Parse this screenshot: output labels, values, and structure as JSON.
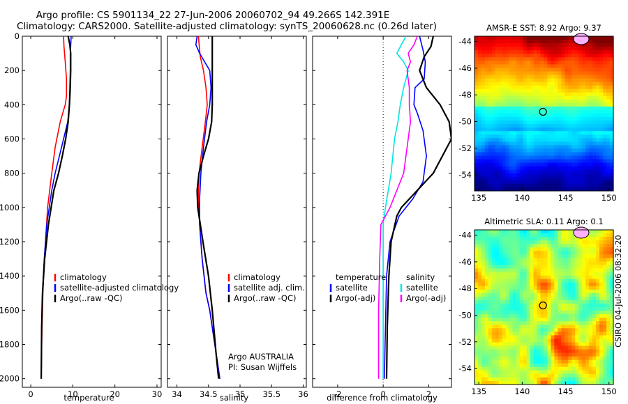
{
  "header": {
    "line1": "Argo profile: CS 5901134_22 27-Jun-2006 20060702_94 49.266S 142.391E",
    "line2": "Climatology: CARS2000. Satellite-adjusted climatology: synTS_20060628.nc (0.26d later)"
  },
  "footer": {
    "credit": "CSIRO 04-Jul-2006 08:32:20",
    "program": "Argo AUSTRALIA",
    "pi": "PI: Susan Wijffels"
  },
  "colors": {
    "climatology": "#ff0000",
    "satellite": "#0000ff",
    "argo": "#000000",
    "salinity_satellite": "#00e5e5",
    "salinity_argo": "#ff00ff"
  },
  "chart_data": [
    {
      "id": "temperature",
      "type": "line",
      "xlabel": "temperature",
      "xlim": [
        -2,
        31
      ],
      "ylim": [
        2050,
        0
      ],
      "xticks": [
        0,
        10,
        20,
        30
      ],
      "yticks": [
        0,
        200,
        400,
        600,
        800,
        1000,
        1200,
        1400,
        1600,
        1800,
        2000
      ],
      "legend": [
        "climatology",
        "satellite-adjusted climatology",
        "Argo(..raw -QC)"
      ],
      "series": [
        {
          "name": "climatology",
          "color": "#ff0000",
          "x": [
            7.8,
            7.9,
            8.2,
            8.5,
            8.5,
            8.2,
            7.0,
            5.8,
            5.0,
            4.5,
            4.0,
            3.5,
            3.0,
            2.8,
            2.6,
            2.5
          ],
          "y": [
            0,
            60,
            150,
            250,
            350,
            400,
            500,
            650,
            800,
            900,
            1000,
            1200,
            1400,
            1600,
            1800,
            2000
          ]
        },
        {
          "name": "satellite-adjusted climatology",
          "color": "#0000ff",
          "x": [
            9.6,
            9.5,
            9.4,
            9.4,
            9.3,
            9.2,
            8.8,
            7.8,
            6.8,
            5.8,
            5.0,
            3.8,
            3.2,
            2.8,
            2.6,
            2.5
          ],
          "y": [
            0,
            60,
            100,
            200,
            300,
            400,
            500,
            600,
            700,
            800,
            900,
            1100,
            1300,
            1500,
            1700,
            2000
          ]
        },
        {
          "name": "Argo(..raw -QC)",
          "color": "#000000",
          "x": [
            8.9,
            9.3,
            9.5,
            9.5,
            9.4,
            9.2,
            8.9,
            8.3,
            7.5,
            6.6,
            5.5,
            4.2,
            3.3,
            2.8,
            2.6,
            2.5
          ],
          "y": [
            0,
            50,
            100,
            200,
            300,
            400,
            500,
            600,
            700,
            800,
            900,
            1100,
            1300,
            1500,
            1700,
            2000
          ]
        }
      ]
    },
    {
      "id": "salinity",
      "type": "line",
      "xlabel": "salinity",
      "xlim": [
        33.85,
        36.05
      ],
      "ylim": [
        2050,
        0
      ],
      "xticks": [
        34,
        34.5,
        35,
        35.5,
        36
      ],
      "legend": [
        "climatology",
        "satellite adj. clim.",
        "Argo(..raw -QC)"
      ],
      "series": [
        {
          "name": "climatology",
          "color": "#ff0000",
          "x": [
            34.34,
            34.35,
            34.37,
            34.42,
            34.46,
            34.48,
            34.45,
            34.4,
            34.35,
            34.34,
            34.36,
            34.4,
            34.46,
            34.52,
            34.58,
            34.64,
            34.68
          ],
          "y": [
            0,
            40,
            120,
            200,
            300,
            400,
            500,
            650,
            800,
            950,
            1100,
            1300,
            1500,
            1600,
            1750,
            1900,
            2000
          ]
        },
        {
          "name": "satellite adj. clim.",
          "color": "#0000ff",
          "x": [
            34.32,
            34.3,
            34.36,
            34.52,
            34.54,
            34.52,
            34.47,
            34.42,
            34.38,
            34.36,
            34.36,
            34.4,
            34.46,
            34.52,
            34.58,
            34.64,
            34.68
          ],
          "y": [
            0,
            50,
            100,
            200,
            300,
            400,
            500,
            650,
            800,
            950,
            1100,
            1300,
            1500,
            1600,
            1750,
            1900,
            2000
          ]
        },
        {
          "name": "Argo(..raw -QC)",
          "color": "#000000",
          "x": [
            34.56,
            34.56,
            34.56,
            34.56,
            34.56,
            34.56,
            34.55,
            34.5,
            34.42,
            34.35,
            34.32,
            34.33,
            34.42,
            34.5,
            34.56,
            34.62,
            34.66
          ],
          "y": [
            0,
            50,
            100,
            200,
            300,
            400,
            500,
            600,
            700,
            800,
            900,
            1000,
            1220,
            1400,
            1600,
            1850,
            2000
          ]
        }
      ]
    },
    {
      "id": "difference",
      "type": "line",
      "xlabel": "difference from climatology",
      "xlim": [
        -3.1,
        3.0
      ],
      "ylim": [
        2050,
        0
      ],
      "xticks": [
        -2,
        0,
        2
      ],
      "legend_groups": {
        "temperature": [
          "satellite",
          "Argo(-adj)"
        ],
        "salinity": [
          "satellite",
          "Argo(-adj)"
        ]
      },
      "series": [
        {
          "name": "temperature satellite",
          "color": "#0000ff",
          "x": [
            1.6,
            1.75,
            1.85,
            1.8,
            1.4,
            1.35,
            1.5,
            1.75,
            1.9,
            1.75,
            1.3,
            0.7,
            0.3,
            0.15,
            0.1,
            0.05
          ],
          "y": [
            0,
            80,
            150,
            250,
            300,
            400,
            450,
            550,
            700,
            850,
            950,
            1050,
            1200,
            1400,
            1700,
            2000
          ]
        },
        {
          "name": "temperature Argo(-adj)",
          "color": "#000000",
          "x": [
            2.2,
            2.1,
            1.8,
            1.6,
            1.9,
            2.5,
            2.9,
            3.0,
            2.2,
            1.5,
            0.8,
            0.6,
            0.35,
            0.25,
            0.18,
            0.15
          ],
          "y": [
            0,
            60,
            120,
            200,
            300,
            400,
            500,
            600,
            800,
            900,
            1000,
            1050,
            1200,
            1400,
            1700,
            2000
          ]
        },
        {
          "name": "salinity satellite",
          "color": "#00e5e5",
          "x": [
            1.0,
            0.8,
            0.6,
            0.9,
            1.1,
            0.9,
            0.75,
            0.65,
            0.5,
            0.35,
            0.1,
            0.0,
            0.0,
            0.0,
            0.0
          ],
          "y": [
            0,
            50,
            100,
            150,
            200,
            300,
            400,
            500,
            600,
            800,
            1000,
            1100,
            1300,
            1600,
            2000
          ]
        },
        {
          "name": "salinity Argo(-adj)",
          "color": "#ff00ff",
          "x": [
            1.5,
            1.35,
            1.1,
            1.2,
            1.05,
            1.15,
            1.15,
            1.2,
            1.1,
            0.9,
            0.3,
            -0.1,
            -0.15,
            -0.2,
            -0.2
          ],
          "y": [
            0,
            50,
            100,
            150,
            200,
            300,
            400,
            500,
            600,
            800,
            1000,
            1100,
            1300,
            1600,
            2000
          ]
        }
      ]
    },
    {
      "id": "sst_map",
      "type": "heatmap",
      "title": "AMSR-E SST: 8.92 Argo: 9.37",
      "xlim": [
        134.5,
        150.5
      ],
      "ylim": [
        -55.2,
        -43.6
      ],
      "xticks": [
        135,
        140,
        145,
        150
      ],
      "yticks": [
        -44,
        -46,
        -48,
        -50,
        -52,
        -54
      ],
      "marker": {
        "lon": 142.39,
        "lat": -49.27
      }
    },
    {
      "id": "sla_map",
      "type": "heatmap",
      "title": "Altimetric SLA: 0.11 Argo: 0.1",
      "xlim": [
        134.5,
        150.5
      ],
      "ylim": [
        -55.2,
        -43.6
      ],
      "xticks": [
        135,
        140,
        145,
        150
      ],
      "yticks": [
        -44,
        -46,
        -48,
        -50,
        -52,
        -54
      ],
      "marker": {
        "lon": 142.39,
        "lat": -49.27
      }
    }
  ]
}
